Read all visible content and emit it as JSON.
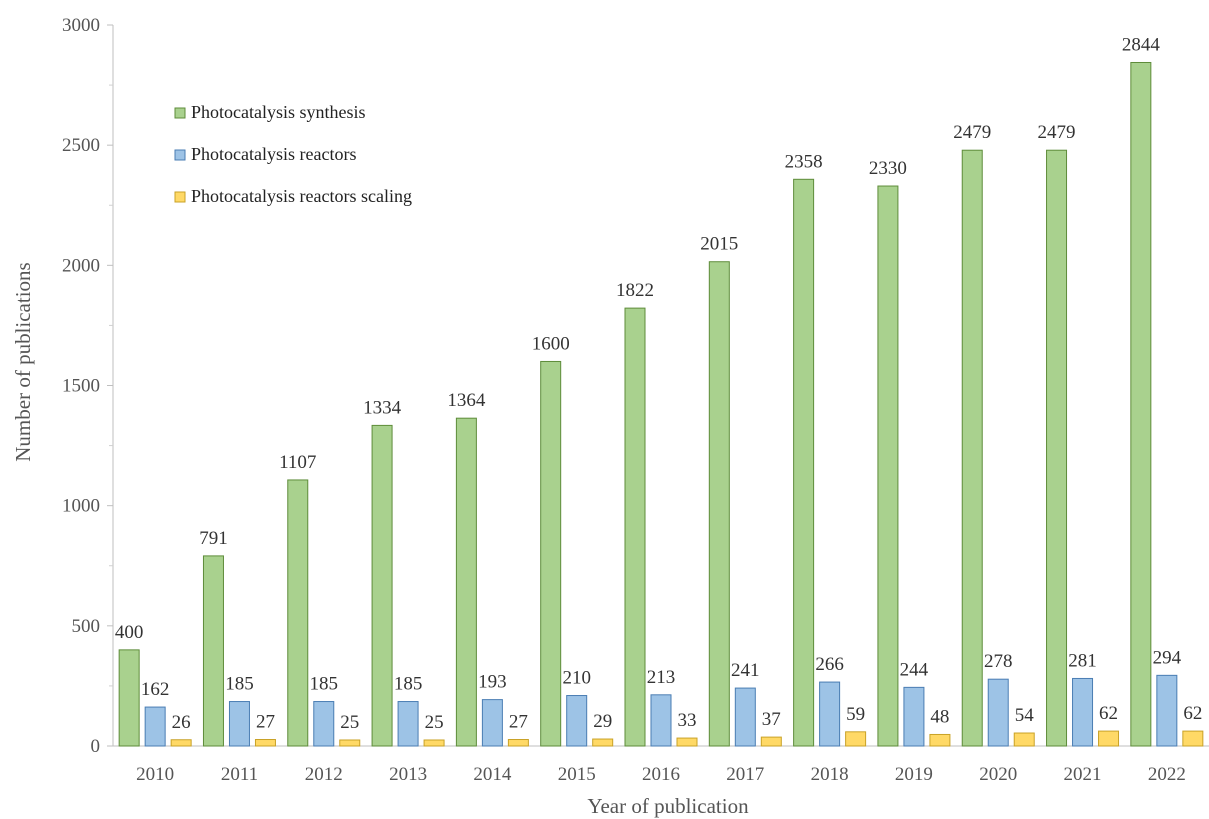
{
  "chart_data": {
    "type": "bar",
    "xlabel": "Year of publication",
    "ylabel": "Number of publications",
    "ylim": [
      0,
      3000
    ],
    "yticks": [
      0,
      500,
      1000,
      1500,
      2000,
      2500,
      3000
    ],
    "grid": false,
    "legend_position": "top-left",
    "categories": [
      "2010",
      "2011",
      "2012",
      "2013",
      "2014",
      "2015",
      "2016",
      "2017",
      "2018",
      "2019",
      "2020",
      "2021",
      "2022"
    ],
    "series": [
      {
        "name": "Photocatalysis synthesis",
        "color": "#a9d18e",
        "stroke": "#5e8c3a",
        "values": [
          400,
          791,
          1107,
          1334,
          1364,
          1600,
          1822,
          2015,
          2358,
          2330,
          2479,
          2479,
          2844
        ]
      },
      {
        "name": "Photocatalysis reactors",
        "color": "#9dc3e6",
        "stroke": "#4a7db3",
        "values": [
          162,
          185,
          185,
          185,
          193,
          210,
          213,
          241,
          266,
          244,
          278,
          281,
          294
        ]
      },
      {
        "name": "Photocatalysis reactors scaling",
        "color": "#ffd966",
        "stroke": "#c9a227",
        "values": [
          26,
          27,
          25,
          25,
          27,
          29,
          33,
          37,
          59,
          48,
          54,
          62,
          62
        ]
      }
    ]
  }
}
